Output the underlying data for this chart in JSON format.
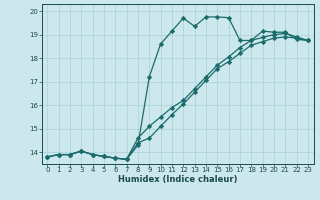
{
  "xlabel": "Humidex (Indice chaleur)",
  "bg_color": "#cde8ec",
  "line_color": "#1a6b6b",
  "xlim": [
    -0.5,
    23.5
  ],
  "ylim": [
    13.5,
    20.3
  ],
  "yticks": [
    14,
    15,
    16,
    17,
    18,
    19,
    20
  ],
  "xticks": [
    0,
    1,
    2,
    3,
    4,
    5,
    6,
    7,
    8,
    9,
    10,
    11,
    12,
    13,
    14,
    15,
    16,
    17,
    18,
    19,
    20,
    21,
    22,
    23
  ],
  "line1_x": [
    0,
    1,
    2,
    3,
    4,
    5,
    6,
    7,
    8,
    9,
    10,
    11,
    12,
    13,
    14,
    15,
    16,
    17,
    18,
    19,
    20,
    21,
    22,
    23
  ],
  "line1_y": [
    13.8,
    13.9,
    13.9,
    14.05,
    13.9,
    13.82,
    13.75,
    13.7,
    14.3,
    17.2,
    18.6,
    19.15,
    19.7,
    19.35,
    19.75,
    19.75,
    19.72,
    18.75,
    18.75,
    19.15,
    19.1,
    19.1,
    18.8,
    18.75
  ],
  "line2_x": [
    0,
    1,
    2,
    3,
    4,
    5,
    6,
    7,
    8,
    9,
    10,
    11,
    12,
    13,
    14,
    15,
    16,
    17,
    18,
    19,
    20,
    21,
    22,
    23
  ],
  "line2_y": [
    13.8,
    13.9,
    13.9,
    14.05,
    13.9,
    13.82,
    13.75,
    13.7,
    14.4,
    14.6,
    15.1,
    15.6,
    16.05,
    16.55,
    17.05,
    17.55,
    17.85,
    18.2,
    18.55,
    18.7,
    18.85,
    18.9,
    18.85,
    18.75
  ],
  "line3_x": [
    0,
    1,
    2,
    3,
    4,
    5,
    6,
    7,
    8,
    9,
    10,
    11,
    12,
    13,
    14,
    15,
    16,
    17,
    18,
    19,
    20,
    21,
    22,
    23
  ],
  "line3_y": [
    13.8,
    13.9,
    13.9,
    14.05,
    13.9,
    13.82,
    13.75,
    13.7,
    14.6,
    15.1,
    15.5,
    15.9,
    16.2,
    16.7,
    17.2,
    17.7,
    18.05,
    18.45,
    18.75,
    18.88,
    19.0,
    19.05,
    18.9,
    18.75
  ]
}
